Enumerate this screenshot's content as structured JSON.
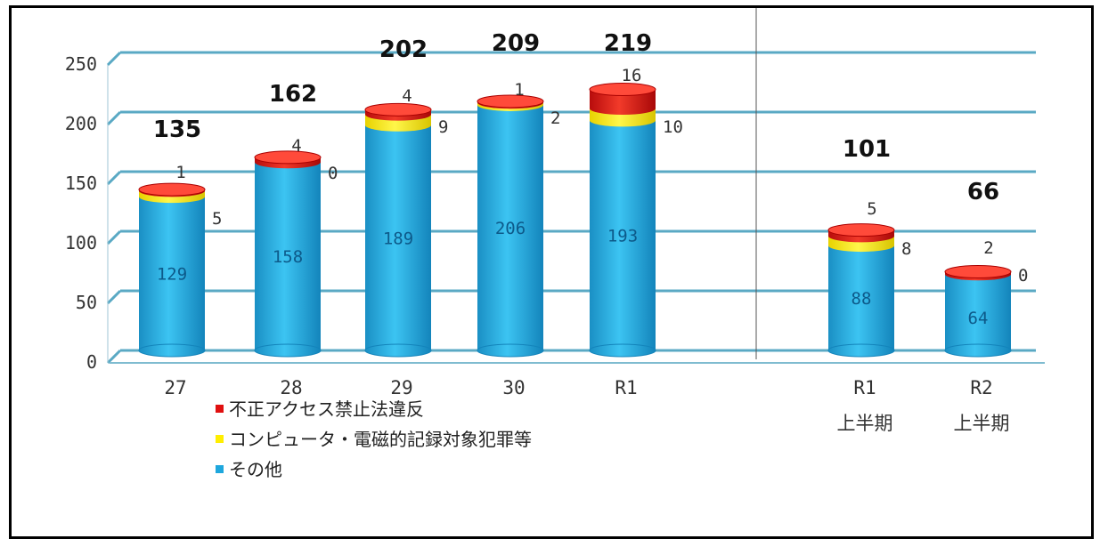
{
  "chart_data": {
    "type": "bar",
    "stacked": true,
    "categories": [
      "27",
      "28",
      "29",
      "30",
      "R1",
      "R1\n上半期",
      "R2\n上半期"
    ],
    "series": [
      {
        "name": "その他",
        "color": "#1ea7dd",
        "values": [
          129,
          158,
          189,
          206,
          193,
          88,
          64
        ]
      },
      {
        "name": "コンピュータ・電磁的記録対象犯罪等",
        "color": "#ffee00",
        "values": [
          5,
          0,
          9,
          2,
          10,
          8,
          0
        ]
      },
      {
        "name": "不正アクセス禁止法違反",
        "color": "#e01010",
        "values": [
          1,
          4,
          4,
          1,
          16,
          5,
          2
        ]
      }
    ],
    "totals": [
      135,
      162,
      202,
      209,
      219,
      101,
      66
    ],
    "yticks": [
      0,
      50,
      100,
      150,
      200,
      250
    ],
    "ylim": [
      0,
      250
    ],
    "grid": true,
    "legend_position": "bottom-left"
  }
}
